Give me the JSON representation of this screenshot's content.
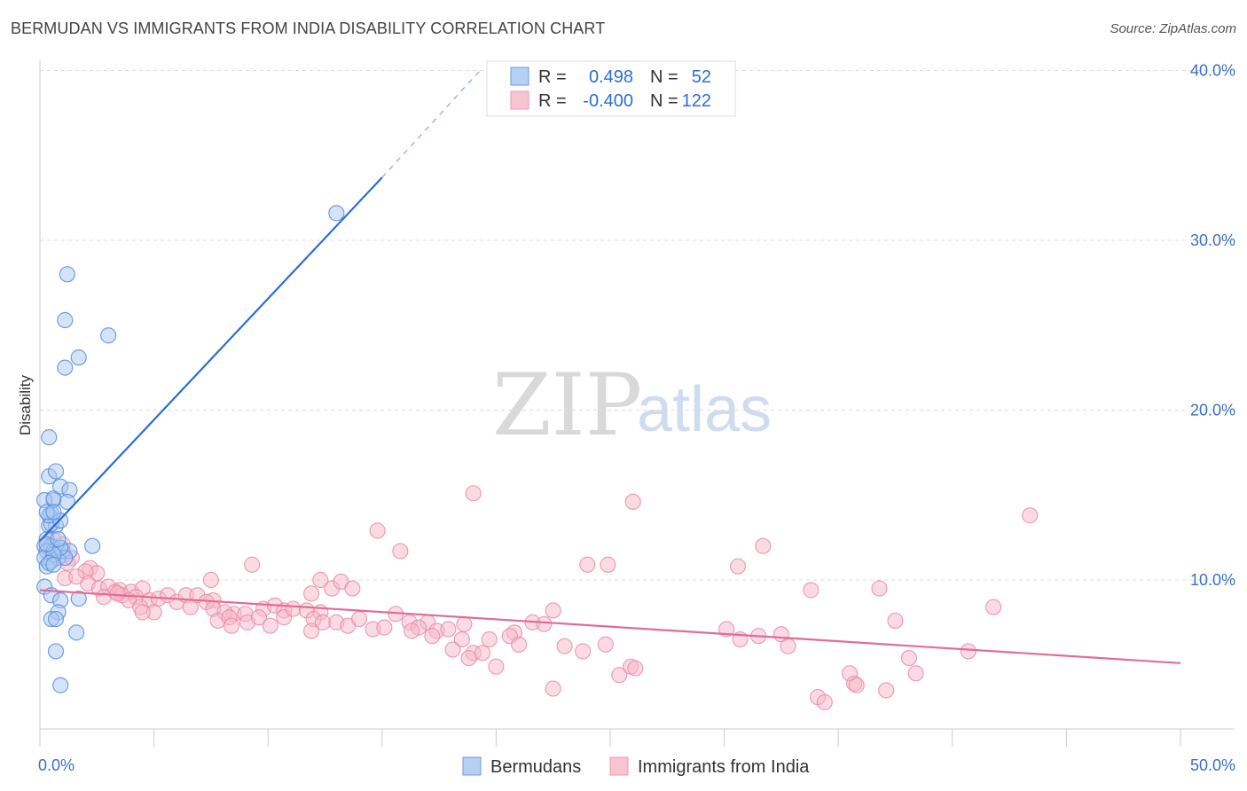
{
  "header": {
    "title": "BERMUDAN VS IMMIGRANTS FROM INDIA DISABILITY CORRELATION CHART",
    "source": "Source: ZipAtlas.com"
  },
  "watermark": {
    "zip": "ZIP",
    "atlas": "atlas"
  },
  "colors": {
    "blue_fill": "#a9c8f2",
    "blue_stroke": "#5a8fdc",
    "blue_line": "#2a6fd4",
    "pink_fill": "#f5b8c8",
    "pink_stroke": "#e989a8",
    "pink_line": "#e26b97",
    "tick_text": "#3b6fc9"
  },
  "legend_box": {
    "r_label": "R =",
    "n_label": "N =",
    "rows": [
      {
        "r": "0.498",
        "n": "52"
      },
      {
        "r": "-0.400",
        "n": "122"
      }
    ]
  },
  "chart_data": {
    "type": "scatter",
    "title": "BERMUDAN VS IMMIGRANTS FROM INDIA DISABILITY CORRELATION CHART",
    "ylabel": "Disability",
    "xlabel": "",
    "xlim": [
      0,
      50
    ],
    "ylim": [
      0,
      42
    ],
    "x_tick_labels": [
      "0.0%",
      "50.0%"
    ],
    "y_ticks": [
      10,
      20,
      30,
      40
    ],
    "y_tick_labels": [
      "10.0%",
      "20.0%",
      "30.0%",
      "40.0%"
    ],
    "grid": true,
    "legend_position": "bottom",
    "series": [
      {
        "name": "Bermudans",
        "r": 0.498,
        "n": 52,
        "trend": {
          "x1": 0.0,
          "y1": 12.3,
          "x2": 15.0,
          "y2": 33.7,
          "dash_to_x": 19.3,
          "dash_to_y": 40.0
        },
        "points": [
          [
            0.5,
            13.9
          ],
          [
            0.6,
            14.7
          ],
          [
            0.4,
            13.2
          ],
          [
            0.2,
            14.7
          ],
          [
            0.7,
            13.2
          ],
          [
            0.3,
            12.4
          ],
          [
            0.2,
            12.0
          ],
          [
            0.5,
            12.0
          ],
          [
            0.3,
            11.7
          ],
          [
            0.6,
            11.7
          ],
          [
            0.2,
            11.3
          ],
          [
            0.5,
            11.1
          ],
          [
            0.3,
            10.8
          ],
          [
            0.8,
            11.3
          ],
          [
            1.0,
            11.7
          ],
          [
            1.3,
            11.7
          ],
          [
            1.1,
            11.3
          ],
          [
            0.9,
            11.9
          ],
          [
            0.5,
            13.3
          ],
          [
            0.4,
            13.8
          ],
          [
            0.3,
            14.0
          ],
          [
            0.6,
            14.8
          ],
          [
            0.4,
            16.1
          ],
          [
            0.7,
            16.4
          ],
          [
            0.9,
            15.5
          ],
          [
            1.3,
            15.3
          ],
          [
            1.2,
            14.6
          ],
          [
            0.9,
            13.5
          ],
          [
            0.6,
            14.0
          ],
          [
            0.4,
            18.4
          ],
          [
            1.1,
            22.5
          ],
          [
            1.7,
            23.1
          ],
          [
            1.2,
            28.0
          ],
          [
            1.1,
            25.3
          ],
          [
            3.0,
            24.4
          ],
          [
            2.3,
            12.0
          ],
          [
            0.2,
            9.6
          ],
          [
            0.5,
            9.1
          ],
          [
            0.9,
            8.8
          ],
          [
            1.7,
            8.9
          ],
          [
            0.8,
            8.1
          ],
          [
            0.5,
            7.7
          ],
          [
            0.7,
            7.7
          ],
          [
            1.6,
            6.9
          ],
          [
            0.7,
            5.8
          ],
          [
            0.9,
            3.8
          ],
          [
            13.0,
            31.6
          ],
          [
            0.6,
            11.5
          ],
          [
            0.3,
            12.1
          ],
          [
            0.8,
            12.4
          ],
          [
            0.4,
            11.0
          ],
          [
            0.6,
            10.9
          ]
        ]
      },
      {
        "name": "Immigrants from India",
        "r": -0.4,
        "n": 122,
        "trend": {
          "x1": 0.0,
          "y1": 9.4,
          "x2": 50.0,
          "y2": 5.1
        },
        "points": [
          [
            0.6,
            12.4
          ],
          [
            1.0,
            12.1
          ],
          [
            1.4,
            11.3
          ],
          [
            2.2,
            10.7
          ],
          [
            2.5,
            10.4
          ],
          [
            2.0,
            10.5
          ],
          [
            1.1,
            10.1
          ],
          [
            2.1,
            9.8
          ],
          [
            2.6,
            9.5
          ],
          [
            3.0,
            9.6
          ],
          [
            3.5,
            9.4
          ],
          [
            3.3,
            9.3
          ],
          [
            4.0,
            9.3
          ],
          [
            3.6,
            9.1
          ],
          [
            4.5,
            9.5
          ],
          [
            4.2,
            9.0
          ],
          [
            4.8,
            8.8
          ],
          [
            3.9,
            8.8
          ],
          [
            5.2,
            8.9
          ],
          [
            5.6,
            9.1
          ],
          [
            6.0,
            8.7
          ],
          [
            6.4,
            9.1
          ],
          [
            6.9,
            9.1
          ],
          [
            7.6,
            8.8
          ],
          [
            4.4,
            8.4
          ],
          [
            5.0,
            8.1
          ],
          [
            4.5,
            8.1
          ],
          [
            6.6,
            8.4
          ],
          [
            7.3,
            8.7
          ],
          [
            7.6,
            8.3
          ],
          [
            8.5,
            8.0
          ],
          [
            9.0,
            8.0
          ],
          [
            9.8,
            8.3
          ],
          [
            10.3,
            8.5
          ],
          [
            10.7,
            8.2
          ],
          [
            8.1,
            8.1
          ],
          [
            7.8,
            7.6
          ],
          [
            8.3,
            7.8
          ],
          [
            8.4,
            7.3
          ],
          [
            9.1,
            7.5
          ],
          [
            9.6,
            7.8
          ],
          [
            10.1,
            7.3
          ],
          [
            10.7,
            7.8
          ],
          [
            11.1,
            8.3
          ],
          [
            11.7,
            8.2
          ],
          [
            12.3,
            8.1
          ],
          [
            12.8,
            9.5
          ],
          [
            12.0,
            7.7
          ],
          [
            11.9,
            7.0
          ],
          [
            12.4,
            7.5
          ],
          [
            13.0,
            7.5
          ],
          [
            13.5,
            7.3
          ],
          [
            14.0,
            7.7
          ],
          [
            14.6,
            7.1
          ],
          [
            15.1,
            7.2
          ],
          [
            15.6,
            8.0
          ],
          [
            16.2,
            7.5
          ],
          [
            17.0,
            7.5
          ],
          [
            16.6,
            7.2
          ],
          [
            17.4,
            7.0
          ],
          [
            17.9,
            7.1
          ],
          [
            17.2,
            6.7
          ],
          [
            18.5,
            6.5
          ],
          [
            18.1,
            5.9
          ],
          [
            19.0,
            5.7
          ],
          [
            18.8,
            5.4
          ],
          [
            19.4,
            5.7
          ],
          [
            19.7,
            6.5
          ],
          [
            20.0,
            4.9
          ],
          [
            20.8,
            6.9
          ],
          [
            20.6,
            6.7
          ],
          [
            21.0,
            6.2
          ],
          [
            21.6,
            7.5
          ],
          [
            22.5,
            8.2
          ],
          [
            23.0,
            6.1
          ],
          [
            23.8,
            5.8
          ],
          [
            22.5,
            3.6
          ],
          [
            24.8,
            6.2
          ],
          [
            25.4,
            4.4
          ],
          [
            25.9,
            4.9
          ],
          [
            26.1,
            4.8
          ],
          [
            24.0,
            10.9
          ],
          [
            24.9,
            10.9
          ],
          [
            26.0,
            14.6
          ],
          [
            30.1,
            7.1
          ],
          [
            30.7,
            6.5
          ],
          [
            31.5,
            6.7
          ],
          [
            31.7,
            12.0
          ],
          [
            32.5,
            6.8
          ],
          [
            32.8,
            6.1
          ],
          [
            30.6,
            10.8
          ],
          [
            33.8,
            9.4
          ],
          [
            34.1,
            3.1
          ],
          [
            34.4,
            2.8
          ],
          [
            35.5,
            4.5
          ],
          [
            35.7,
            3.9
          ],
          [
            35.8,
            3.8
          ],
          [
            37.1,
            3.5
          ],
          [
            37.5,
            7.6
          ],
          [
            38.1,
            5.4
          ],
          [
            38.4,
            4.5
          ],
          [
            40.7,
            5.8
          ],
          [
            41.8,
            8.4
          ],
          [
            36.8,
            9.5
          ],
          [
            43.4,
            13.8
          ],
          [
            19.0,
            15.1
          ],
          [
            14.8,
            12.9
          ],
          [
            15.8,
            11.7
          ],
          [
            9.3,
            10.9
          ],
          [
            7.5,
            10.0
          ],
          [
            12.3,
            10.0
          ],
          [
            13.2,
            9.9
          ],
          [
            13.7,
            9.5
          ],
          [
            11.9,
            9.2
          ],
          [
            2.8,
            9.0
          ],
          [
            3.4,
            9.2
          ],
          [
            1.6,
            10.2
          ],
          [
            1.2,
            11.0
          ],
          [
            0.4,
            11.8
          ],
          [
            18.6,
            7.4
          ],
          [
            16.3,
            7.0
          ],
          [
            22.1,
            7.4
          ]
        ]
      }
    ]
  },
  "legend": {
    "items": [
      {
        "label": "Bermudans"
      },
      {
        "label": "Immigrants from India"
      }
    ]
  }
}
